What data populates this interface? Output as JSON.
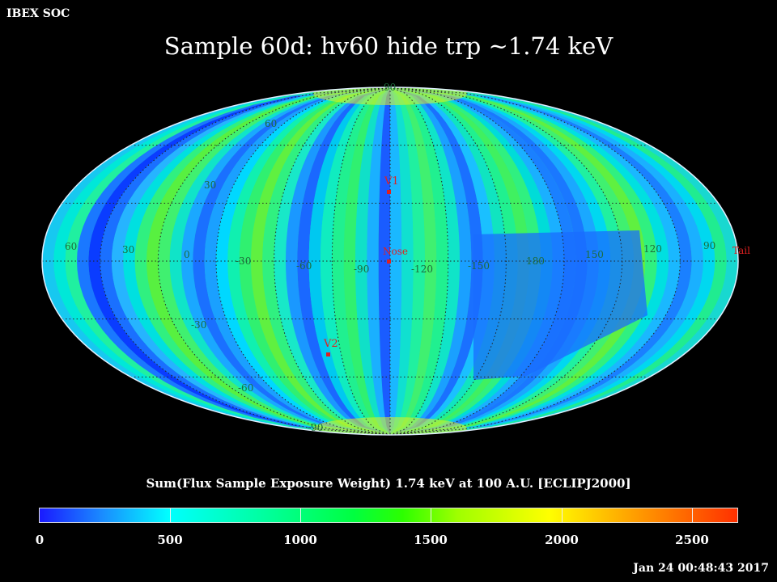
{
  "org_label": "IBEX SOC",
  "title": "Sample 60d: hv60 hide trp ~1.74 keV",
  "colorbar": {
    "label": "Sum(Flux Sample Exposure Weight)  1.74 keV at 100 A.U. [ECLIPJ2000]",
    "ticks": [
      "0",
      "500",
      "1000",
      "1500",
      "2000",
      "2500"
    ],
    "tick_values": [
      0,
      500,
      1000,
      1500,
      2000,
      2500
    ],
    "max": 2680,
    "colors": [
      "#1a1aff",
      "#00ffff",
      "#00ff40",
      "#ffff00",
      "#ff3000"
    ]
  },
  "timestamp": "Jan 24 00:48:43 2017",
  "map": {
    "projection": "Mollweide (ecliptic, centered on nose)",
    "lat_labels": [
      "90",
      "60",
      "30",
      "-30",
      "-60",
      "-90"
    ],
    "lon_labels": [
      "60",
      "30",
      "0",
      "-30",
      "-60",
      "-90",
      "-120",
      "-150",
      "180",
      "150",
      "120",
      "90"
    ],
    "markers": [
      {
        "name": "V1"
      },
      {
        "name": "Nose"
      },
      {
        "name": "V2"
      },
      {
        "name": "Tail"
      }
    ],
    "marker_color": "#e02020",
    "grid_color": "#222222"
  }
}
